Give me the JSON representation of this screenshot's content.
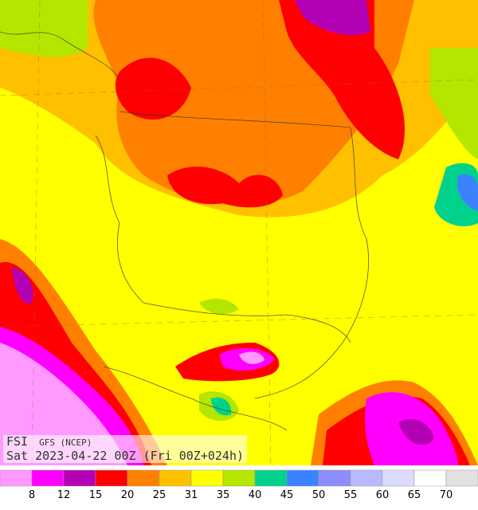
{
  "map": {
    "index": "FSI",
    "model": "GFS (NCEP)",
    "valid_time": "Sat 2023-04-22 00Z (Fri 00Z+024h)"
  },
  "legend": {
    "colors": [
      "#ff99ff",
      "#ff00ff",
      "#b400b4",
      "#ff0000",
      "#ff8000",
      "#ffc000",
      "#ffff00",
      "#b4e600",
      "#00d28c",
      "#3c82ff",
      "#8c8cff",
      "#b9b9ff",
      "#dcdcff",
      "#ffffff",
      "#e1e1e1"
    ],
    "labels": [
      8,
      12,
      15,
      20,
      25,
      31,
      35,
      40,
      45,
      50,
      55,
      60,
      65,
      70
    ]
  }
}
